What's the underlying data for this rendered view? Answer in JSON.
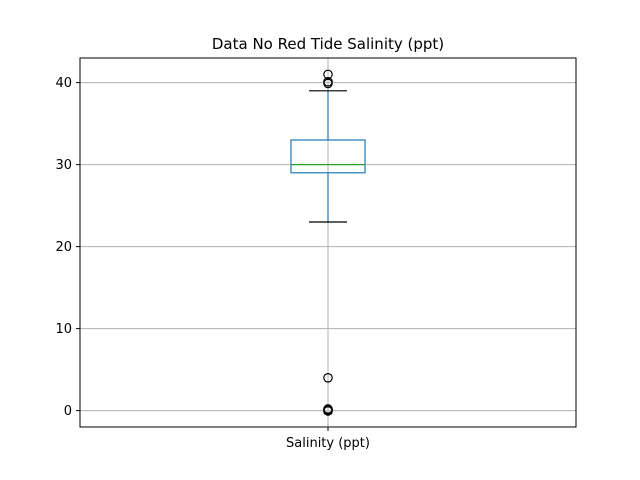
{
  "chart_data": {
    "type": "box",
    "title": "Data No Red Tide Salinity (ppt)",
    "categories": [
      "Salinity (ppt)"
    ],
    "xlabel": "",
    "ylabel": "",
    "ylim": [
      -2,
      43
    ],
    "yticks": [
      0,
      10,
      20,
      30,
      40
    ],
    "grid": true,
    "boxes": [
      {
        "category": "Salinity (ppt)",
        "whisker_low": 23,
        "q1": 29,
        "median": 30,
        "q3": 33,
        "whisker_high": 39,
        "outliers": [
          41,
          40.1,
          39.9,
          4,
          0.2,
          0.1,
          0.0,
          -0.05
        ]
      }
    ],
    "colors": {
      "box": "#1f77b4",
      "median": "#2ca02c",
      "whisker_cap": "#000000",
      "grid": "#b0b0b0",
      "outlier": "#000000"
    }
  }
}
